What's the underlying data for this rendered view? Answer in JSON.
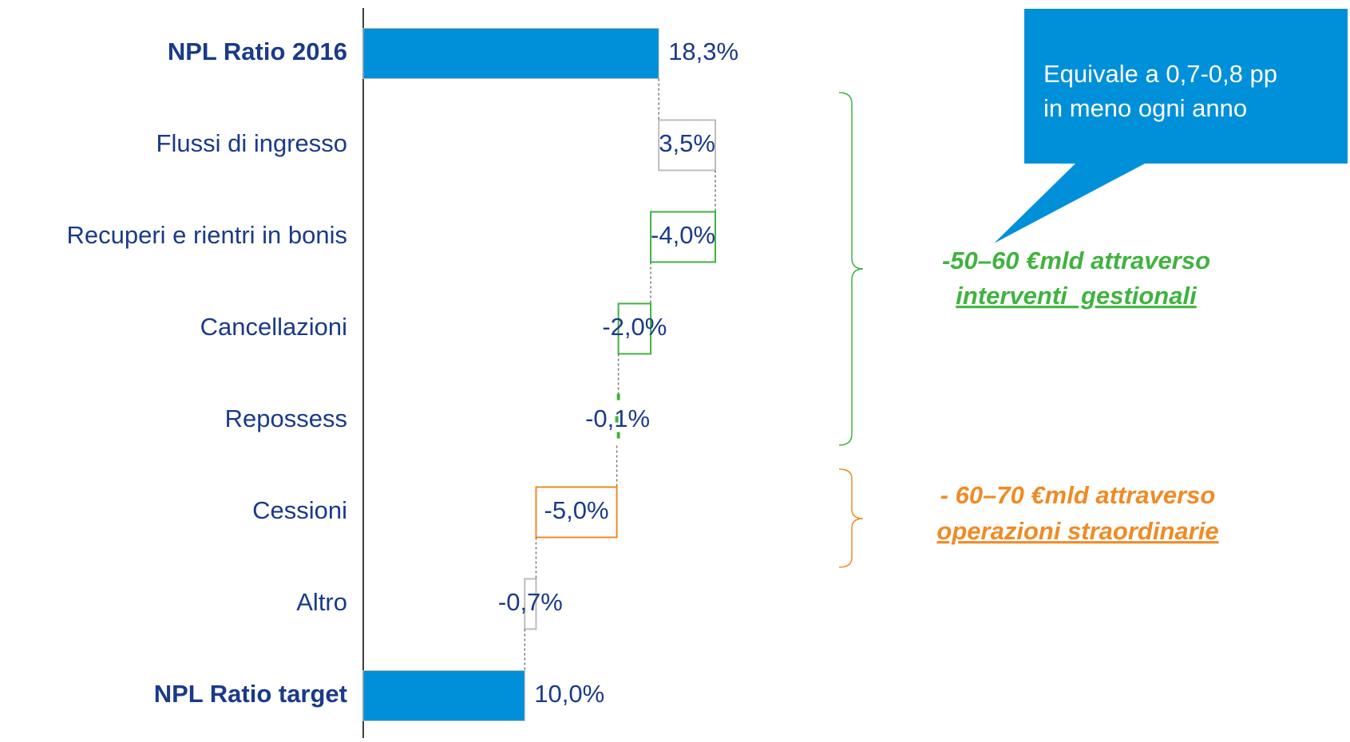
{
  "chart_data": {
    "type": "waterfall",
    "categories": [
      "NPL Ratio 2016",
      "Flussi di ingresso",
      "Recuperi e rientri in bonis",
      "Cancellazioni",
      "Repossess",
      "Cessioni",
      "Altro",
      "NPL Ratio target"
    ],
    "values": [
      18.3,
      3.5,
      -4.0,
      -2.0,
      -0.1,
      -5.0,
      -0.7,
      10.0
    ],
    "value_labels": [
      "18,3%",
      "3,5%",
      "-4,0%",
      "-2,0%",
      "-0,1%",
      "-5,0%",
      "-0,7%",
      "10,0%"
    ],
    "totals": [
      0,
      7
    ],
    "colors": [
      "#0090d9",
      "#bdbdbd",
      "#3fb33f",
      "#3fb33f",
      "#3fb33f",
      "#f08a24",
      "#bdbdbd",
      "#0090d9"
    ],
    "annotations": [
      {
        "lines": [
          "Equivale a 0,7-0,8 pp",
          "in meno ogni anno"
        ],
        "color": "#0090d9"
      },
      {
        "lines": [
          "-50–60 €mld attraverso",
          "interventi  gestionali"
        ],
        "color": "#3fb33f"
      },
      {
        "lines": [
          "- 60–70 €mld attraverso",
          "operazioni straordinarie"
        ],
        "color": "#f08a24"
      }
    ]
  }
}
